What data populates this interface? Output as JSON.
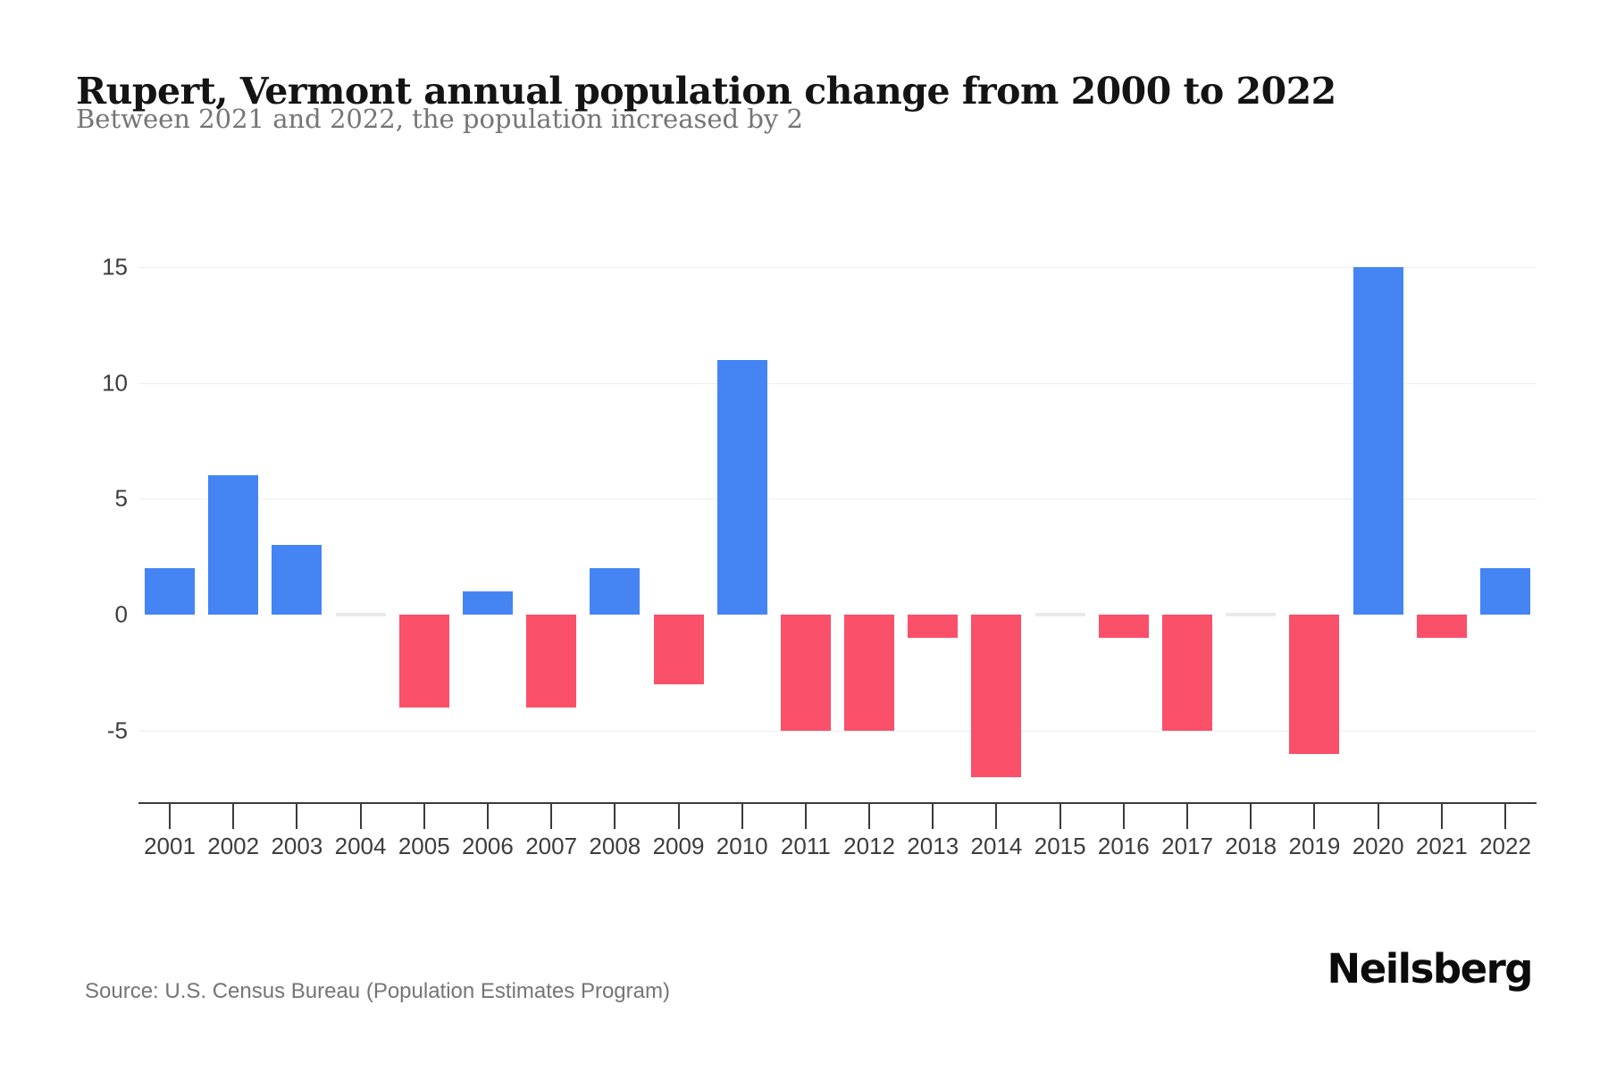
{
  "header": {
    "title": "Rupert, Vermont annual population change from 2000 to 2022",
    "subtitle": "Between 2021 and 2022, the population increased by 2"
  },
  "chart_data": {
    "type": "bar",
    "title": "Rupert, Vermont annual population change from 2000 to 2022",
    "subtitle": "Between 2021 and 2022, the population increased by 2",
    "categories": [
      "2001",
      "2002",
      "2003",
      "2004",
      "2005",
      "2006",
      "2007",
      "2008",
      "2009",
      "2010",
      "2011",
      "2012",
      "2013",
      "2014",
      "2015",
      "2016",
      "2017",
      "2018",
      "2019",
      "2020",
      "2021",
      "2022"
    ],
    "values": [
      2,
      6,
      3,
      0,
      -4,
      1,
      -4,
      2,
      -3,
      11,
      -5,
      -5,
      -1,
      -7,
      0,
      -1,
      -5,
      0,
      -6,
      15,
      -1,
      2
    ],
    "xlabel": "",
    "ylabel": "",
    "yticks": [
      15,
      10,
      5,
      0,
      -5
    ],
    "ylim": [
      -8,
      17
    ],
    "grid": true,
    "legend": "none",
    "colors": {
      "positive": "#4484F3",
      "negative": "#FA5069",
      "zero": "#E9E9E9"
    }
  },
  "footer": {
    "source": "Source: U.S. Census Bureau (Population Estimates Program)",
    "brand": "Neilsberg"
  }
}
